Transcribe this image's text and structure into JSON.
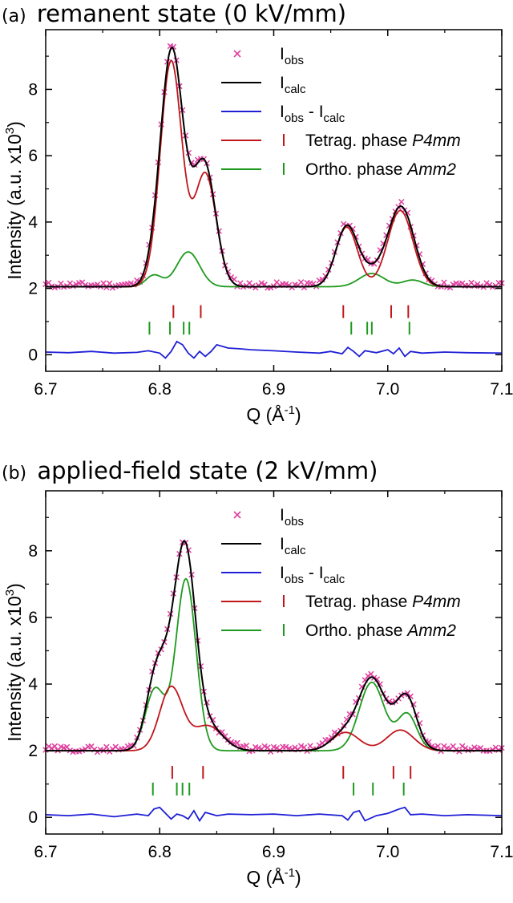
{
  "chart_data": [
    {
      "type": "line",
      "panel_label": "(a)",
      "title": "remanent state (0 kV/mm)",
      "xlabel": "Q (Å",
      "xlabel_sup": "-1",
      "xlabel_close": ")",
      "ylabel": "Intensity (a.u. x10",
      "ylabel_sup": "3",
      "ylabel_close": ")",
      "xlim": [
        6.7,
        7.1
      ],
      "ylim": [
        -0.5,
        9.8
      ],
      "xticks": [
        6.7,
        6.8,
        6.9,
        7.0,
        7.1
      ],
      "xtick_labels": [
        "6.7",
        "6.8",
        "6.9",
        "7.0",
        "7.1"
      ],
      "yticks": [
        0,
        2,
        4,
        6,
        8
      ],
      "ytick_labels": [
        "0",
        "2",
        "4",
        "6",
        "8"
      ],
      "legend": {
        "placement": "top-right",
        "entries": [
          {
            "key": "obs",
            "label": "I",
            "sub": "obs",
            "tail": "",
            "italic": "",
            "color": "#e0409f",
            "marker": "x"
          },
          {
            "key": "calc",
            "label": "I",
            "sub": "calc",
            "tail": "",
            "italic": "",
            "color": "#000000",
            "marker": "line"
          },
          {
            "key": "diff",
            "label": "I",
            "sub": "obs",
            "tail": " - I",
            "sub2": "calc",
            "italic": "",
            "color": "#1f1fd6",
            "marker": "line"
          },
          {
            "key": "tet",
            "label": "Tetrag. phase ",
            "sub": "",
            "tail": "",
            "italic": "P4mm",
            "color": "#c0161c",
            "marker": "line+bar"
          },
          {
            "key": "orth",
            "label": "Ortho. phase ",
            "sub": "",
            "tail": "",
            "italic": "Amm2",
            "color": "#1e9a1e",
            "marker": "line+bar"
          }
        ]
      },
      "colors": {
        "obs": "#e0409f",
        "calc": "#000000",
        "diff": "#1f1fd6",
        "tet": "#c0161c",
        "orth": "#1e9a1e"
      },
      "background": 2.05,
      "tetragonal_peaks": [
        {
          "x": 6.81,
          "h": 6.8,
          "w": 0.0095
        },
        {
          "x": 6.84,
          "h": 3.4,
          "w": 0.0095
        },
        {
          "x": 6.964,
          "h": 1.8,
          "w": 0.0095
        },
        {
          "x": 7.011,
          "h": 2.3,
          "w": 0.011
        }
      ],
      "orthorhombic_peaks": [
        {
          "x": 6.795,
          "h": 0.35,
          "w": 0.007
        },
        {
          "x": 6.825,
          "h": 1.05,
          "w": 0.01
        },
        {
          "x": 6.986,
          "h": 0.4,
          "w": 0.011
        },
        {
          "x": 7.022,
          "h": 0.2,
          "w": 0.009
        }
      ],
      "tetragonal_reflections": [
        6.812,
        6.836,
        6.961,
        7.003,
        7.018
      ],
      "orthorhombic_reflections": [
        6.791,
        6.809,
        6.821,
        6.826,
        6.968,
        6.982,
        6.986,
        7.019
      ],
      "tet_tick_y": 1.3,
      "orth_tick_y": 0.8,
      "difference": {
        "x": [
          6.7,
          6.72,
          6.74,
          6.76,
          6.78,
          6.79,
          6.8,
          6.805,
          6.81,
          6.815,
          6.82,
          6.825,
          6.83,
          6.835,
          6.84,
          6.845,
          6.85,
          6.86,
          6.87,
          6.88,
          6.9,
          6.92,
          6.94,
          6.95,
          6.96,
          6.965,
          6.97,
          6.975,
          6.98,
          6.99,
          7.0,
          7.005,
          7.01,
          7.015,
          7.02,
          7.03,
          7.05,
          7.07,
          7.1
        ],
        "y": [
          0.08,
          0.06,
          0.1,
          0.05,
          0.07,
          0.12,
          0.05,
          -0.1,
          0.1,
          0.4,
          0.3,
          0.05,
          -0.1,
          0.1,
          -0.05,
          0.1,
          0.3,
          0.2,
          0.18,
          0.15,
          0.12,
          0.08,
          0.05,
          0.1,
          0.03,
          0.22,
          0.1,
          -0.05,
          0.12,
          0.06,
          0.15,
          0.03,
          0.2,
          -0.05,
          0.1,
          0.05,
          0.08,
          0.06,
          0.05
        ]
      },
      "obs_noise_seed": 11
    },
    {
      "type": "line",
      "panel_label": "(b)",
      "title": "applied-field state (2 kV/mm)",
      "xlabel": "Q (Å",
      "xlabel_sup": "-1",
      "xlabel_close": ")",
      "ylabel": "Intensity (a.u. x10",
      "ylabel_sup": "3",
      "ylabel_close": ")",
      "xlim": [
        6.7,
        7.1
      ],
      "ylim": [
        -0.5,
        9.8
      ],
      "xticks": [
        6.7,
        6.8,
        6.9,
        7.0,
        7.1
      ],
      "xtick_labels": [
        "6.7",
        "6.8",
        "6.9",
        "7.0",
        "7.1"
      ],
      "yticks": [
        0,
        2,
        4,
        6,
        8
      ],
      "ytick_labels": [
        "0",
        "2",
        "4",
        "6",
        "8"
      ],
      "legend": {
        "placement": "top-right",
        "entries": [
          {
            "key": "obs",
            "label": "I",
            "sub": "obs",
            "tail": "",
            "italic": "",
            "color": "#e0409f",
            "marker": "x"
          },
          {
            "key": "calc",
            "label": "I",
            "sub": "calc",
            "tail": "",
            "italic": "",
            "color": "#000000",
            "marker": "line"
          },
          {
            "key": "diff",
            "label": "I",
            "sub": "obs",
            "tail": " - I",
            "sub2": "calc",
            "italic": "",
            "color": "#1f1fd6",
            "marker": "line"
          },
          {
            "key": "tet",
            "label": "Tetrag. phase ",
            "sub": "",
            "tail": "",
            "italic": "P4mm",
            "color": "#c0161c",
            "marker": "line+bar"
          },
          {
            "key": "orth",
            "label": "Ortho. phase ",
            "sub": "",
            "tail": "",
            "italic": "Amm2",
            "color": "#1e9a1e",
            "marker": "line+bar"
          }
        ]
      },
      "colors": {
        "obs": "#e0409f",
        "calc": "#000000",
        "diff": "#1f1fd6",
        "tet": "#c0161c",
        "orth": "#1e9a1e"
      },
      "background": 2.0,
      "tetragonal_peaks": [
        {
          "x": 6.81,
          "h": 1.9,
          "w": 0.01
        },
        {
          "x": 6.842,
          "h": 0.75,
          "w": 0.013
        },
        {
          "x": 6.963,
          "h": 0.55,
          "w": 0.012
        },
        {
          "x": 7.011,
          "h": 0.62,
          "w": 0.012
        }
      ],
      "orthorhombic_peaks": [
        {
          "x": 6.796,
          "h": 1.85,
          "w": 0.0085
        },
        {
          "x": 6.823,
          "h": 5.15,
          "w": 0.0088
        },
        {
          "x": 6.986,
          "h": 2.05,
          "w": 0.011
        },
        {
          "x": 7.017,
          "h": 1.1,
          "w": 0.0085
        }
      ],
      "tetragonal_reflections": [
        6.811,
        6.838,
        6.961,
        7.005,
        7.02
      ],
      "orthorhombic_reflections": [
        6.794,
        6.815,
        6.82,
        6.826,
        6.97,
        6.987,
        7.014
      ],
      "tet_tick_y": 1.35,
      "orth_tick_y": 0.85,
      "difference": {
        "x": [
          6.7,
          6.72,
          6.74,
          6.76,
          6.78,
          6.79,
          6.795,
          6.8,
          6.81,
          6.815,
          6.82,
          6.825,
          6.83,
          6.835,
          6.84,
          6.85,
          6.86,
          6.88,
          6.9,
          6.92,
          6.94,
          6.96,
          6.965,
          6.97,
          6.975,
          6.98,
          6.99,
          7.0,
          7.01,
          7.015,
          7.02,
          7.03,
          7.05,
          7.07,
          7.1
        ],
        "y": [
          0.08,
          0.05,
          0.1,
          0.02,
          0.1,
          0.05,
          0.25,
          0.3,
          -0.05,
          0.1,
          0.05,
          -0.05,
          0.2,
          -0.1,
          0.15,
          0.05,
          0.1,
          0.08,
          0.1,
          0.05,
          0.1,
          0.05,
          -0.08,
          0.15,
          0.2,
          -0.1,
          0.05,
          0.12,
          0.25,
          0.3,
          0.08,
          0.1,
          0.05,
          0.08,
          0.05
        ]
      },
      "obs_noise_seed": 29
    }
  ]
}
